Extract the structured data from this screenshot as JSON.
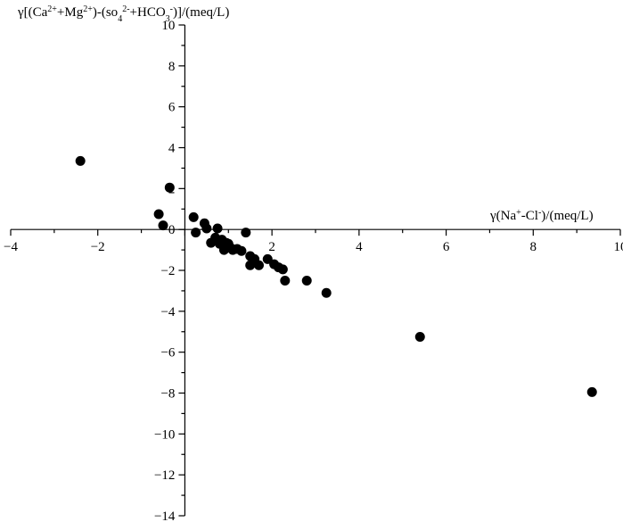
{
  "chart_data": {
    "type": "scatter",
    "title": "",
    "xlabel": "γ(Na⁺-Cl⁻)/(meq/L)",
    "ylabel": "γ[(Ca²⁺+Mg²⁺)-(so₄²⁻+HCO₃⁻)]/(meq/L)",
    "xlim": [
      -4,
      10
    ],
    "ylim": [
      -14,
      10
    ],
    "xticks": [
      -4,
      -2,
      0,
      2,
      4,
      6,
      8,
      10
    ],
    "yticks": [
      -14,
      -12,
      -10,
      -8,
      -6,
      -4,
      -2,
      0,
      2,
      4,
      6,
      8,
      10
    ],
    "grid": false,
    "legend": "none",
    "series": [
      {
        "x": [
          -2.4,
          -0.6,
          -0.5,
          -0.35,
          0.2,
          0.25,
          0.45,
          0.5,
          0.6,
          0.7,
          0.75,
          0.8,
          0.85,
          0.9,
          0.95,
          1.0,
          1.05,
          1.1,
          1.2,
          1.3,
          1.4,
          1.5,
          1.5,
          1.6,
          1.7,
          1.9,
          2.05,
          2.15,
          2.25,
          2.3,
          2.8,
          3.25,
          5.4,
          9.35
        ],
        "y": [
          3.35,
          0.75,
          0.2,
          2.05,
          0.6,
          -0.15,
          0.3,
          0.05,
          -0.65,
          -0.4,
          0.05,
          -0.7,
          -0.5,
          -1.0,
          -0.65,
          -0.7,
          -0.9,
          -1.0,
          -0.95,
          -1.05,
          -0.15,
          -1.3,
          -1.75,
          -1.45,
          -1.75,
          -1.45,
          -1.7,
          -1.85,
          -1.95,
          -2.5,
          -2.5,
          -3.1,
          -5.25,
          -7.95
        ]
      }
    ],
    "colors": {
      "marker": "#000000",
      "axis": "#000000"
    }
  }
}
